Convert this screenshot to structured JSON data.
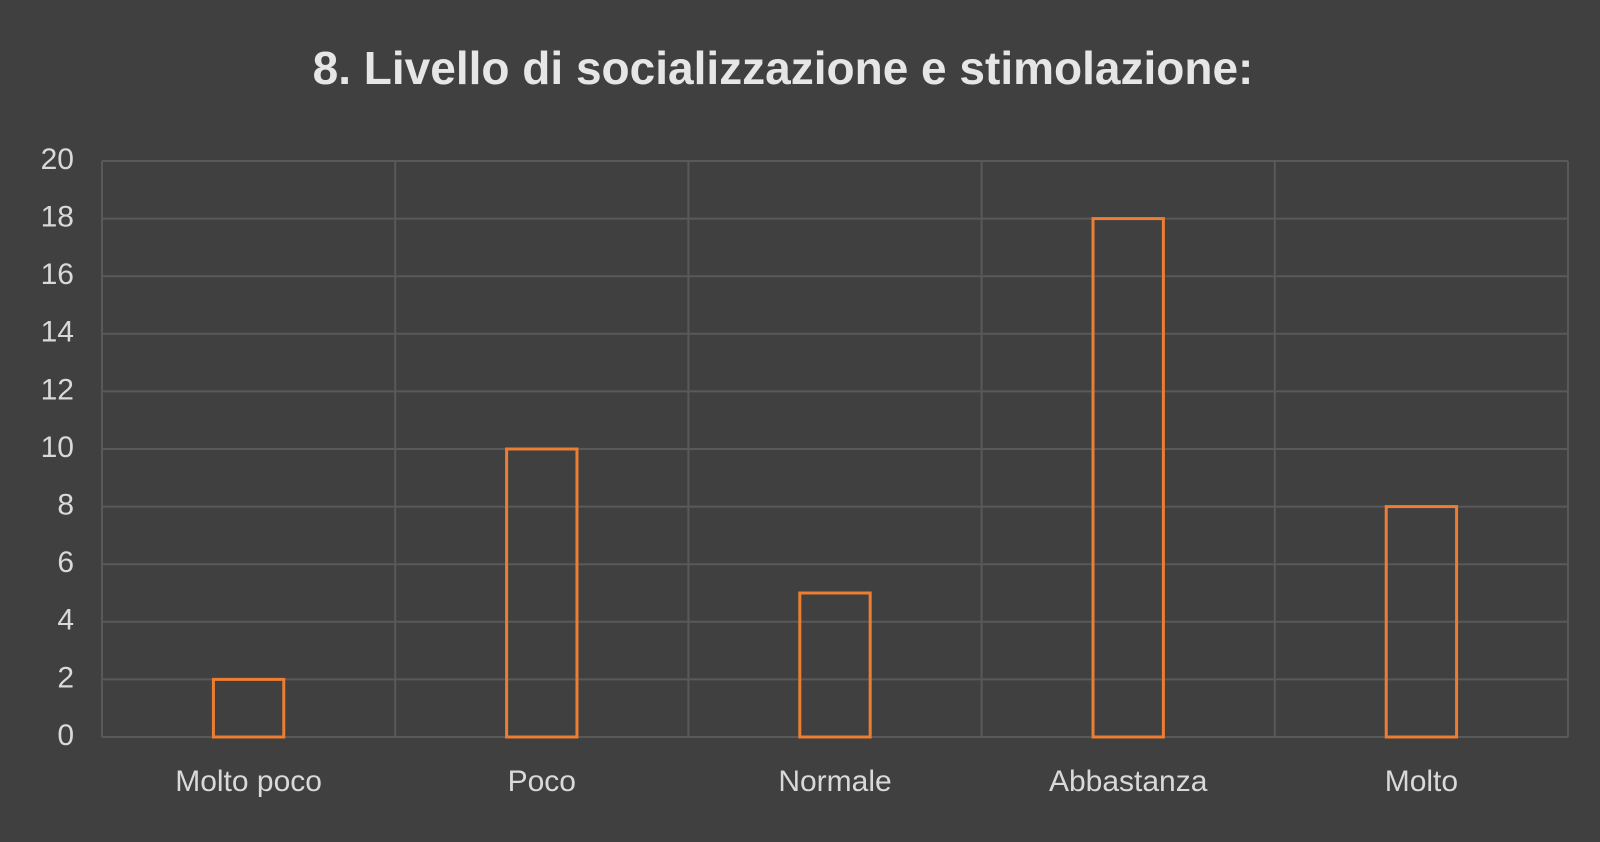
{
  "chart_data": {
    "type": "bar",
    "title": "8. Livello di socializzazione e stimolazione:",
    "categories": [
      "Molto poco",
      "Poco",
      "Normale",
      "Abbastanza",
      "Molto"
    ],
    "values": [
      2,
      10,
      5,
      18,
      8
    ],
    "color": "#ed7d31",
    "ylim": [
      0,
      20
    ],
    "yticks": [
      0,
      2,
      4,
      6,
      8,
      10,
      12,
      14,
      16,
      18,
      20
    ],
    "grid": true
  }
}
